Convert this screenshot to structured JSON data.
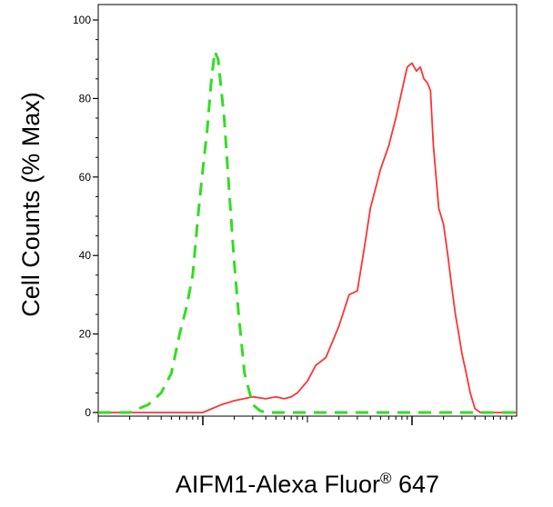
{
  "chart_data": {
    "type": "line",
    "title": "",
    "xlabel": "AIFM1-Alexa Fluor",
    "xlabel_superscript": "®",
    "xlabel_suffix": " 647",
    "ylabel": "Cell Counts (% Max)",
    "ylim": [
      0,
      100
    ],
    "y_ticks": [
      0,
      20,
      40,
      60,
      80,
      100
    ],
    "y_tick_labels": [
      "0",
      "20",
      "40",
      "60",
      "80",
      "100"
    ],
    "x_scale": "log",
    "xlim": [
      0.001,
      10
    ],
    "x_major_ticks": [
      0.01,
      1
    ],
    "x_tick_labels_shown": false,
    "grid": false,
    "legend": "none",
    "series": [
      {
        "color": "#ff3333",
        "style": "solid",
        "x": [
          0.001,
          0.005,
          0.01,
          0.015,
          0.02,
          0.03,
          0.04,
          0.05,
          0.06,
          0.07,
          0.08,
          0.1,
          0.12,
          0.15,
          0.2,
          0.25,
          0.3,
          0.35,
          0.4,
          0.5,
          0.6,
          0.7,
          0.8,
          0.9,
          1.0,
          1.1,
          1.2,
          1.3,
          1.4,
          1.5,
          1.6,
          1.8,
          2.0,
          2.2,
          2.4,
          2.6,
          2.8,
          3.0,
          3.3,
          3.6,
          4.0,
          4.5,
          5.0,
          6.0,
          7.0,
          8.0,
          10.0
        ],
        "y": [
          0,
          0,
          0,
          2,
          3,
          4,
          3.5,
          4,
          3.5,
          4,
          5,
          8,
          12,
          14,
          22,
          30,
          31,
          42,
          52,
          62,
          68,
          75,
          82,
          88,
          89,
          87,
          88,
          85,
          84,
          82,
          68,
          52,
          48,
          40,
          32,
          25,
          20,
          15,
          10,
          5,
          1,
          0,
          0,
          0,
          0,
          0,
          0
        ]
      },
      {
        "color": "#33dd22",
        "style": "dashed",
        "x": [
          0.001,
          0.002,
          0.003,
          0.004,
          0.005,
          0.006,
          0.007,
          0.008,
          0.009,
          0.01,
          0.011,
          0.012,
          0.013,
          0.014,
          0.016,
          0.018,
          0.02,
          0.022,
          0.025,
          0.03,
          0.035,
          0.04,
          0.05,
          0.06,
          0.08,
          0.1,
          1,
          10
        ],
        "y": [
          0,
          0,
          2,
          5,
          10,
          20,
          27,
          35,
          50,
          62,
          72,
          84,
          92,
          90,
          75,
          55,
          38,
          25,
          10,
          2,
          0.5,
          0,
          0,
          0,
          0,
          0,
          0,
          0
        ]
      }
    ]
  }
}
